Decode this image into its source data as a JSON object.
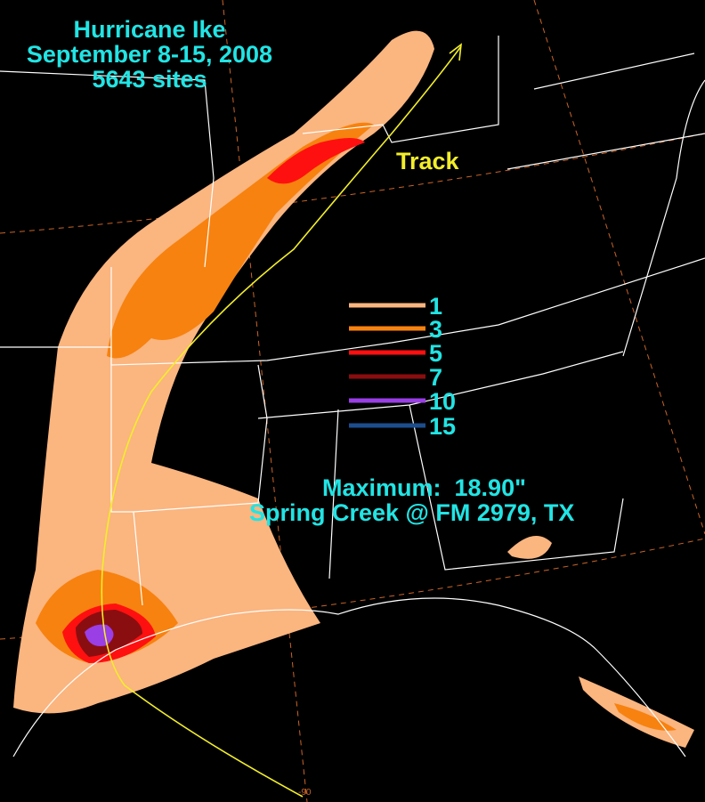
{
  "title": {
    "lines": [
      "Hurricane Ike",
      "September 8-15, 2008",
      "5643 sites"
    ]
  },
  "track_label": "Track",
  "legend": {
    "items": [
      {
        "value": 1,
        "color": "#fbb57f"
      },
      {
        "value": 3,
        "color": "#f7820f"
      },
      {
        "value": 5,
        "color": "#ff1010"
      },
      {
        "value": 7,
        "color": "#8a0e10"
      },
      {
        "value": 10,
        "color": "#9a3ee6"
      },
      {
        "value": 15,
        "color": "#1c4e8e"
      }
    ]
  },
  "maximum": {
    "text": "Maximum:  18.90\"",
    "location": "Spring Creek @ FM 2979, TX"
  },
  "longitude_label": "-90"
}
